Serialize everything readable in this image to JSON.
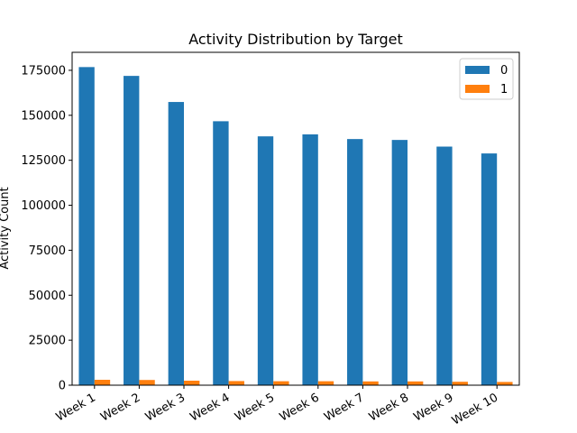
{
  "chart_data": {
    "type": "bar",
    "title": "Activity Distribution by Target",
    "xlabel": "",
    "ylabel": "Activity Count",
    "categories": [
      "Week 1",
      "Week 2",
      "Week 3",
      "Week 4",
      "Week 5",
      "Week 6",
      "Week 7",
      "Week 8",
      "Week 9",
      "Week 10"
    ],
    "series": [
      {
        "name": "0",
        "color": "#1f77b4",
        "values": [
          176800,
          171900,
          157400,
          146700,
          138300,
          139400,
          136800,
          136300,
          132600,
          128800
        ]
      },
      {
        "name": "1",
        "color": "#ff7f0e",
        "values": [
          3000,
          2900,
          2500,
          2300,
          2200,
          2200,
          2100,
          2100,
          1900,
          1800
        ]
      }
    ],
    "ylim": [
      0,
      185000
    ],
    "yticks": [
      0,
      25000,
      50000,
      75000,
      100000,
      125000,
      150000,
      175000
    ],
    "ytick_labels": [
      "0",
      "25000",
      "50000",
      "75000",
      "100000",
      "125000",
      "150000",
      "175000"
    ],
    "grid": false,
    "legend_position": "top-right"
  }
}
